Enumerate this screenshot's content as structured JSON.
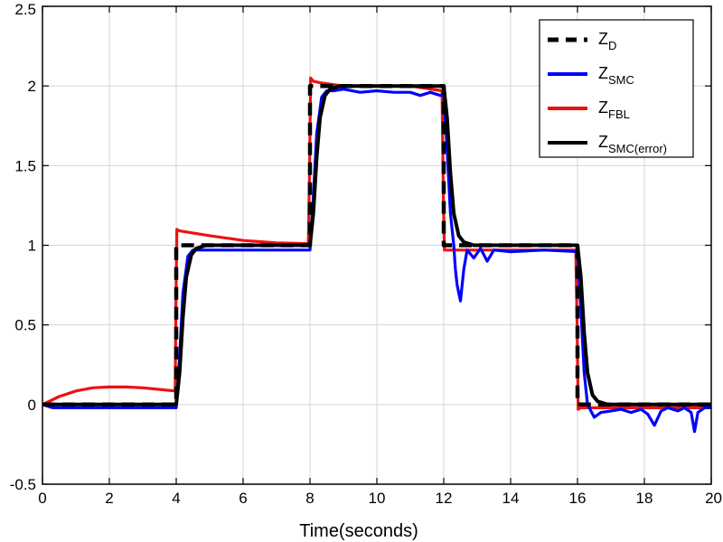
{
  "chart_data": {
    "type": "line",
    "title": "",
    "xlabel": "Time(seconds)",
    "ylabel": "",
    "xlim": [
      0,
      20
    ],
    "ylim": [
      -0.5,
      2.5
    ],
    "xticks": [
      0,
      2,
      4,
      6,
      8,
      10,
      12,
      14,
      16,
      18,
      20
    ],
    "yticks": [
      -0.5,
      0,
      0.5,
      1,
      1.5,
      2,
      2.5
    ],
    "xtick_labels": [
      "0",
      "2",
      "4",
      "6",
      "8",
      "10",
      "12",
      "14",
      "16",
      "18",
      "20"
    ],
    "ytick_labels": [
      "-0.5",
      "0",
      "0.5",
      "1",
      "1.5",
      "2",
      "2.5"
    ],
    "grid": true,
    "legend_position": "top-right",
    "series": [
      {
        "name": "Z_D",
        "legend_main": "Z",
        "legend_sub": "D",
        "color": "#000000",
        "style": "dashed",
        "x": [
          0,
          4,
          4,
          8,
          8,
          12,
          12,
          16,
          16,
          20
        ],
        "y": [
          0,
          0,
          1,
          1,
          2,
          2,
          1,
          1,
          0,
          0
        ]
      },
      {
        "name": "Z_SMC",
        "legend_main": "Z",
        "legend_sub": "SMC",
        "color": "#0000ff",
        "style": "solid",
        "x": [
          0,
          0.3,
          0.6,
          4.0,
          4.1,
          4.2,
          4.35,
          4.5,
          6,
          7.8,
          8.0,
          8.1,
          8.2,
          8.35,
          8.5,
          8.7,
          9.0,
          9.5,
          10,
          10.5,
          11,
          11.3,
          11.6,
          11.9,
          12.0,
          12.1,
          12.2,
          12.3,
          12.35,
          12.4,
          12.5,
          12.6,
          12.7,
          12.9,
          13.1,
          13.3,
          13.5,
          14,
          15,
          16.0,
          16.1,
          16.2,
          16.3,
          16.4,
          16.5,
          16.7,
          17,
          17.3,
          17.6,
          17.9,
          18.1,
          18.3,
          18.5,
          18.7,
          19.0,
          19.2,
          19.4,
          19.5,
          19.6,
          19.8,
          20
        ],
        "y": [
          0,
          -0.02,
          -0.02,
          -0.02,
          0.3,
          0.7,
          0.93,
          0.97,
          0.97,
          0.97,
          0.97,
          1.3,
          1.7,
          1.93,
          1.97,
          1.97,
          1.98,
          1.96,
          1.97,
          1.96,
          1.96,
          1.94,
          1.96,
          1.94,
          1.95,
          1.6,
          1.2,
          1.0,
          0.85,
          0.75,
          0.65,
          0.85,
          0.97,
          0.92,
          0.98,
          0.9,
          0.97,
          0.96,
          0.97,
          0.96,
          0.6,
          0.2,
          0.0,
          -0.04,
          -0.08,
          -0.05,
          -0.04,
          -0.03,
          -0.05,
          -0.03,
          -0.06,
          -0.13,
          -0.04,
          -0.02,
          -0.04,
          -0.02,
          -0.05,
          -0.17,
          -0.05,
          -0.02,
          -0.02
        ]
      },
      {
        "name": "Z_FBL",
        "legend_main": "Z",
        "legend_sub": "FBL",
        "color": "#ee1111",
        "style": "solid",
        "x": [
          0,
          0.5,
          1.0,
          1.5,
          2.0,
          2.5,
          3.0,
          3.5,
          3.97,
          3.99,
          4.02,
          4.1,
          5,
          6,
          7,
          7.95,
          7.99,
          8.02,
          8.1,
          8.3,
          9,
          10,
          11,
          11.95,
          11.99,
          12.02,
          12.1,
          12.5,
          14,
          15,
          15.95,
          15.99,
          16.02,
          16.1,
          16.5,
          18,
          20
        ],
        "y": [
          0,
          0.05,
          0.085,
          0.105,
          0.11,
          0.11,
          0.105,
          0.095,
          0.085,
          0.6,
          1.1,
          1.09,
          1.06,
          1.03,
          1.015,
          1.01,
          1.5,
          2.05,
          2.03,
          2.02,
          2.0,
          2.0,
          2.0,
          1.97,
          1.3,
          0.97,
          0.97,
          0.97,
          0.97,
          0.97,
          0.97,
          0.5,
          -0.03,
          -0.02,
          -0.02,
          -0.02,
          -0.02
        ]
      },
      {
        "name": "Z_SMC(error)",
        "legend_main": "Z",
        "legend_sub": "SMC(error)",
        "color": "#000000",
        "style": "solid",
        "x": [
          0,
          4.0,
          4.1,
          4.2,
          4.3,
          4.45,
          4.6,
          4.9,
          6,
          8.0,
          8.1,
          8.2,
          8.3,
          8.45,
          8.6,
          8.9,
          10,
          12.0,
          12.1,
          12.2,
          12.3,
          12.45,
          12.6,
          12.9,
          14,
          16.0,
          16.1,
          16.2,
          16.3,
          16.45,
          16.6,
          16.9,
          18,
          20
        ],
        "y": [
          0,
          0,
          0.2,
          0.55,
          0.8,
          0.94,
          0.98,
          1.0,
          1.0,
          1.0,
          1.2,
          1.55,
          1.8,
          1.94,
          1.98,
          2.0,
          2.0,
          2.0,
          1.8,
          1.45,
          1.2,
          1.06,
          1.02,
          1.0,
          1.0,
          1.0,
          0.8,
          0.45,
          0.2,
          0.06,
          0.02,
          0.0,
          0.0,
          0.0
        ]
      }
    ]
  }
}
